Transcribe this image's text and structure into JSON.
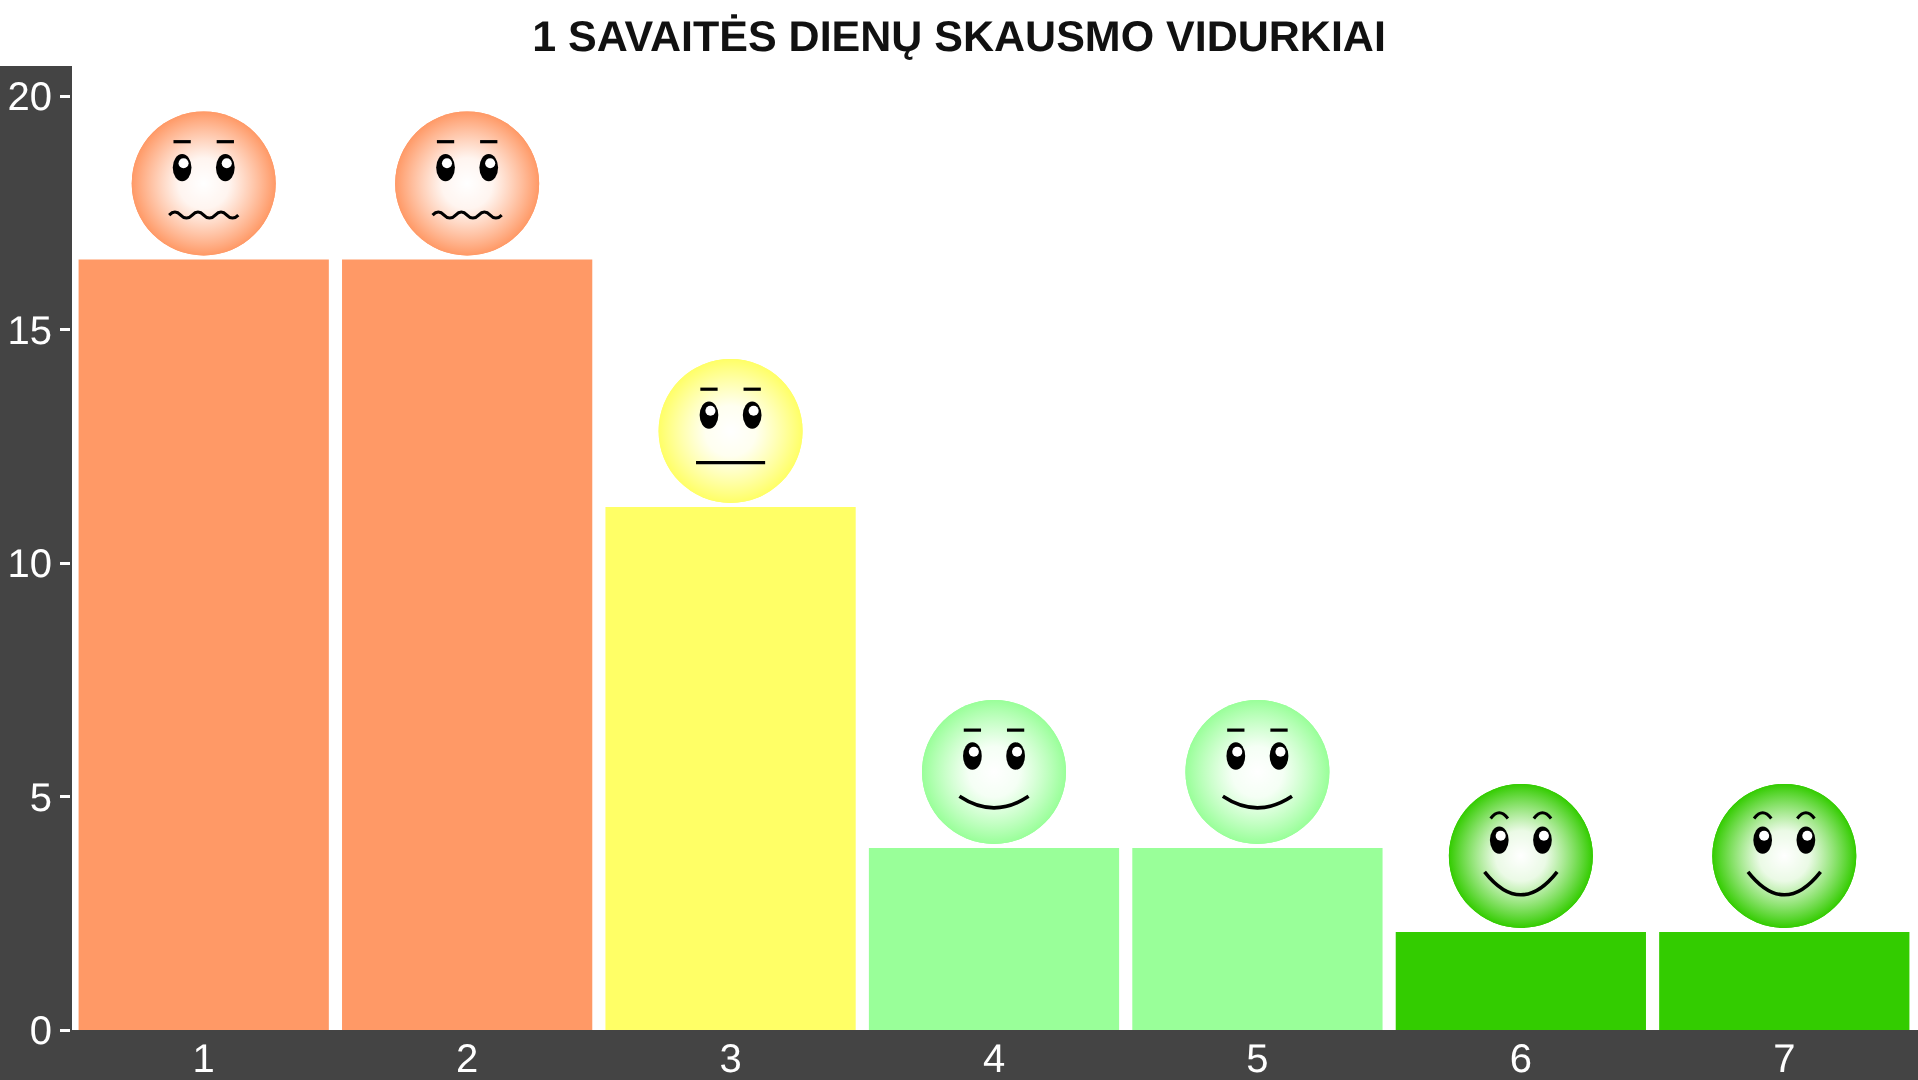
{
  "chart_data": {
    "type": "bar",
    "title": "1 SAVAITĖS DIENŲ SKAUSMO VIDURKIAI",
    "categories": [
      "1",
      "2",
      "3",
      "4",
      "5",
      "6",
      "7"
    ],
    "values": [
      16.5,
      16.5,
      11.2,
      3.9,
      3.9,
      2.1,
      2.1
    ],
    "colors": [
      "#ff9966",
      "#ff9966",
      "#ffff66",
      "#99ff99",
      "#99ff99",
      "#33cc00",
      "#33cc00"
    ],
    "ylim": [
      0,
      20
    ],
    "yticks": [
      0,
      5,
      10,
      15,
      20
    ]
  }
}
